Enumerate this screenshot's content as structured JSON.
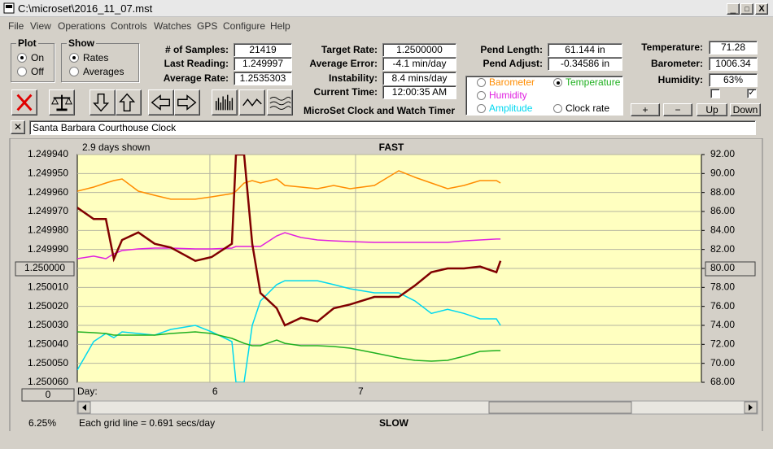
{
  "window": {
    "title": "C:\\microset\\2016_11_07.mst"
  },
  "menu": [
    "File",
    "View",
    "Operations",
    "Controls",
    "Watches",
    "GPS",
    "Configure",
    "Help"
  ],
  "plot_group": {
    "label": "Plot",
    "options": [
      "On",
      "Off"
    ],
    "selected": 0
  },
  "show_group": {
    "label": "Show",
    "options": [
      "Rates",
      "Averages"
    ],
    "selected": 0
  },
  "readouts": [
    [
      {
        "label": "# of Samples:",
        "value": "21419"
      },
      {
        "label": "Last Reading:",
        "value": "1.249997"
      },
      {
        "label": "Average Rate:",
        "value": "1.2535303"
      }
    ],
    [
      {
        "label": "Target Rate:",
        "value": "1.2500000"
      },
      {
        "label": "Average Error:",
        "value": "-4.1 min/day"
      },
      {
        "label": "Instability:",
        "value": "8.4 mins/day"
      },
      {
        "label": "Current Time:",
        "value": "12:00:35 AM"
      }
    ],
    [
      {
        "label": "Pend Length:",
        "value": "61.144 in"
      },
      {
        "label": "Pend Adjust:",
        "value": "-0.34586 in"
      }
    ],
    [
      {
        "label": "Temperature:",
        "value": "71.28"
      },
      {
        "label": "Barometer:",
        "value": "1006.34"
      },
      {
        "label": "Humidity:",
        "value": "63%"
      }
    ]
  ],
  "app_title": "MicroSet Clock and Watch Timer",
  "plot_select": {
    "options": [
      "Barometer",
      "Humidity",
      "Amplitude",
      "Temperature",
      "Clock rate"
    ],
    "colors": [
      "#ff8c00",
      "#e020e0",
      "#00d8f0",
      "#20b020",
      "#000000"
    ],
    "selected": 3
  },
  "env_buttons": [
    "+",
    "−",
    "Up",
    "Down"
  ],
  "checkboxes": [
    false,
    true
  ],
  "clock_name": "Santa Barbara Courthouse Clock",
  "chart_data": {
    "type": "line",
    "days_shown": "2.9 days shown",
    "top_label": "FAST",
    "bottom_label": "SLOW",
    "x_label": "Day:",
    "scale_button": "0",
    "percent": "6.25%",
    "grid_note": "Each grid line = 0.691 secs/day",
    "x": [
      5.09,
      5.202,
      5.286,
      5.341,
      5.397,
      5.509,
      5.621,
      5.732,
      5.9,
      6.012,
      6.151,
      6.179,
      6.235,
      6.291,
      6.347,
      6.459,
      6.515,
      6.626,
      6.738,
      6.85,
      6.962,
      7.129,
      7.297,
      7.408,
      7.52,
      7.632,
      7.744,
      7.855,
      7.967,
      7.995
    ],
    "xlim": [
      5.09,
      9.374
    ],
    "xticks": [
      6,
      7
    ],
    "ylim": [
      1.24994,
      1.25006
    ],
    "y_inverted": true,
    "yticks": [
      {
        "value": 1.24994,
        "label": "1.249940"
      },
      {
        "value": 1.24995,
        "label": "1.249950"
      },
      {
        "value": 1.24996,
        "label": "1.249960"
      },
      {
        "value": 1.24997,
        "label": "1.249970"
      },
      {
        "value": 1.24998,
        "label": "1.249980"
      },
      {
        "value": 1.24999,
        "label": "1.249990"
      },
      {
        "value": 1.25,
        "label": "1.250000"
      },
      {
        "value": 1.25001,
        "label": "1.250010"
      },
      {
        "value": 1.25002,
        "label": "1.250020"
      },
      {
        "value": 1.25003,
        "label": "1.250030"
      },
      {
        "value": 1.25004,
        "label": "1.250040"
      },
      {
        "value": 1.25005,
        "label": "1.250050"
      },
      {
        "value": 1.25006,
        "label": "1.250060"
      }
    ],
    "y2lim": [
      68,
      92
    ],
    "y2ticks": [
      {
        "value": 68,
        "label": "68.00"
      },
      {
        "value": 70,
        "label": "70.00"
      },
      {
        "value": 72,
        "label": "72.00"
      },
      {
        "value": 74,
        "label": "74.00"
      },
      {
        "value": 76,
        "label": "76.00"
      },
      {
        "value": 78,
        "label": "78.00"
      },
      {
        "value": 80,
        "label": "80.00"
      },
      {
        "value": 82,
        "label": "82.00"
      },
      {
        "value": 84,
        "label": "84.00"
      },
      {
        "value": 86,
        "label": "86.00"
      },
      {
        "value": 88,
        "label": "88.00"
      },
      {
        "value": 90,
        "label": "90.00"
      },
      {
        "value": 92,
        "label": "92.00"
      }
    ],
    "grid": true,
    "series": [
      {
        "color": "#ff8c00",
        "axis": "y2",
        "values": [
          88.14,
          88.57,
          89.0,
          89.26,
          89.43,
          88.14,
          87.71,
          87.29,
          87.29,
          87.54,
          87.89,
          88.14,
          89.0,
          89.26,
          89.0,
          89.43,
          88.74,
          88.57,
          88.4,
          88.74,
          88.4,
          88.74,
          90.29,
          89.6,
          89.0,
          88.4,
          88.74,
          89.26,
          89.26,
          89.0
        ]
      },
      {
        "color": "#e020e0",
        "axis": "y2",
        "values": [
          81.03,
          81.29,
          81.03,
          81.54,
          81.89,
          82.06,
          82.14,
          82.14,
          82.06,
          82.06,
          82.14,
          82.31,
          82.31,
          82.31,
          82.31,
          83.43,
          83.77,
          83.26,
          83.0,
          82.91,
          82.83,
          82.74,
          82.74,
          82.74,
          82.74,
          82.74,
          82.91,
          83.0,
          83.09,
          83.09
        ]
      },
      {
        "color": "#00d8f0",
        "axis": "y2",
        "values": [
          69.29,
          72.29,
          73.14,
          72.71,
          73.31,
          73.14,
          72.97,
          73.57,
          74.0,
          73.31,
          72.29,
          68.0,
          68.0,
          74.0,
          76.57,
          78.29,
          78.71,
          78.71,
          78.71,
          78.29,
          77.86,
          77.43,
          77.43,
          76.57,
          75.26,
          75.69,
          75.26,
          74.69,
          74.69,
          74.0
        ]
      },
      {
        "color": "#20b020",
        "axis": "y2",
        "values": [
          73.31,
          73.23,
          73.14,
          72.97,
          72.97,
          72.97,
          72.97,
          73.14,
          73.31,
          73.14,
          72.63,
          72.46,
          72.11,
          71.86,
          71.86,
          72.46,
          72.11,
          71.86,
          71.86,
          71.77,
          71.6,
          71.09,
          70.57,
          70.31,
          70.23,
          70.31,
          70.74,
          71.26,
          71.34,
          71.34
        ]
      },
      {
        "color": "#800000",
        "values": [
          1.249968,
          1.249974,
          1.249974,
          1.249995,
          1.249985,
          1.249981,
          1.249987,
          1.249989,
          1.249996,
          1.249994,
          1.249987,
          1.24994,
          1.24994,
          1.249987,
          1.250013,
          1.250021,
          1.25003,
          1.250026,
          1.250028,
          1.250021,
          1.250019,
          1.250015,
          1.250015,
          1.250009,
          1.250002,
          1.25,
          1.25,
          1.249999,
          1.250002,
          1.249996
        ]
      }
    ]
  }
}
